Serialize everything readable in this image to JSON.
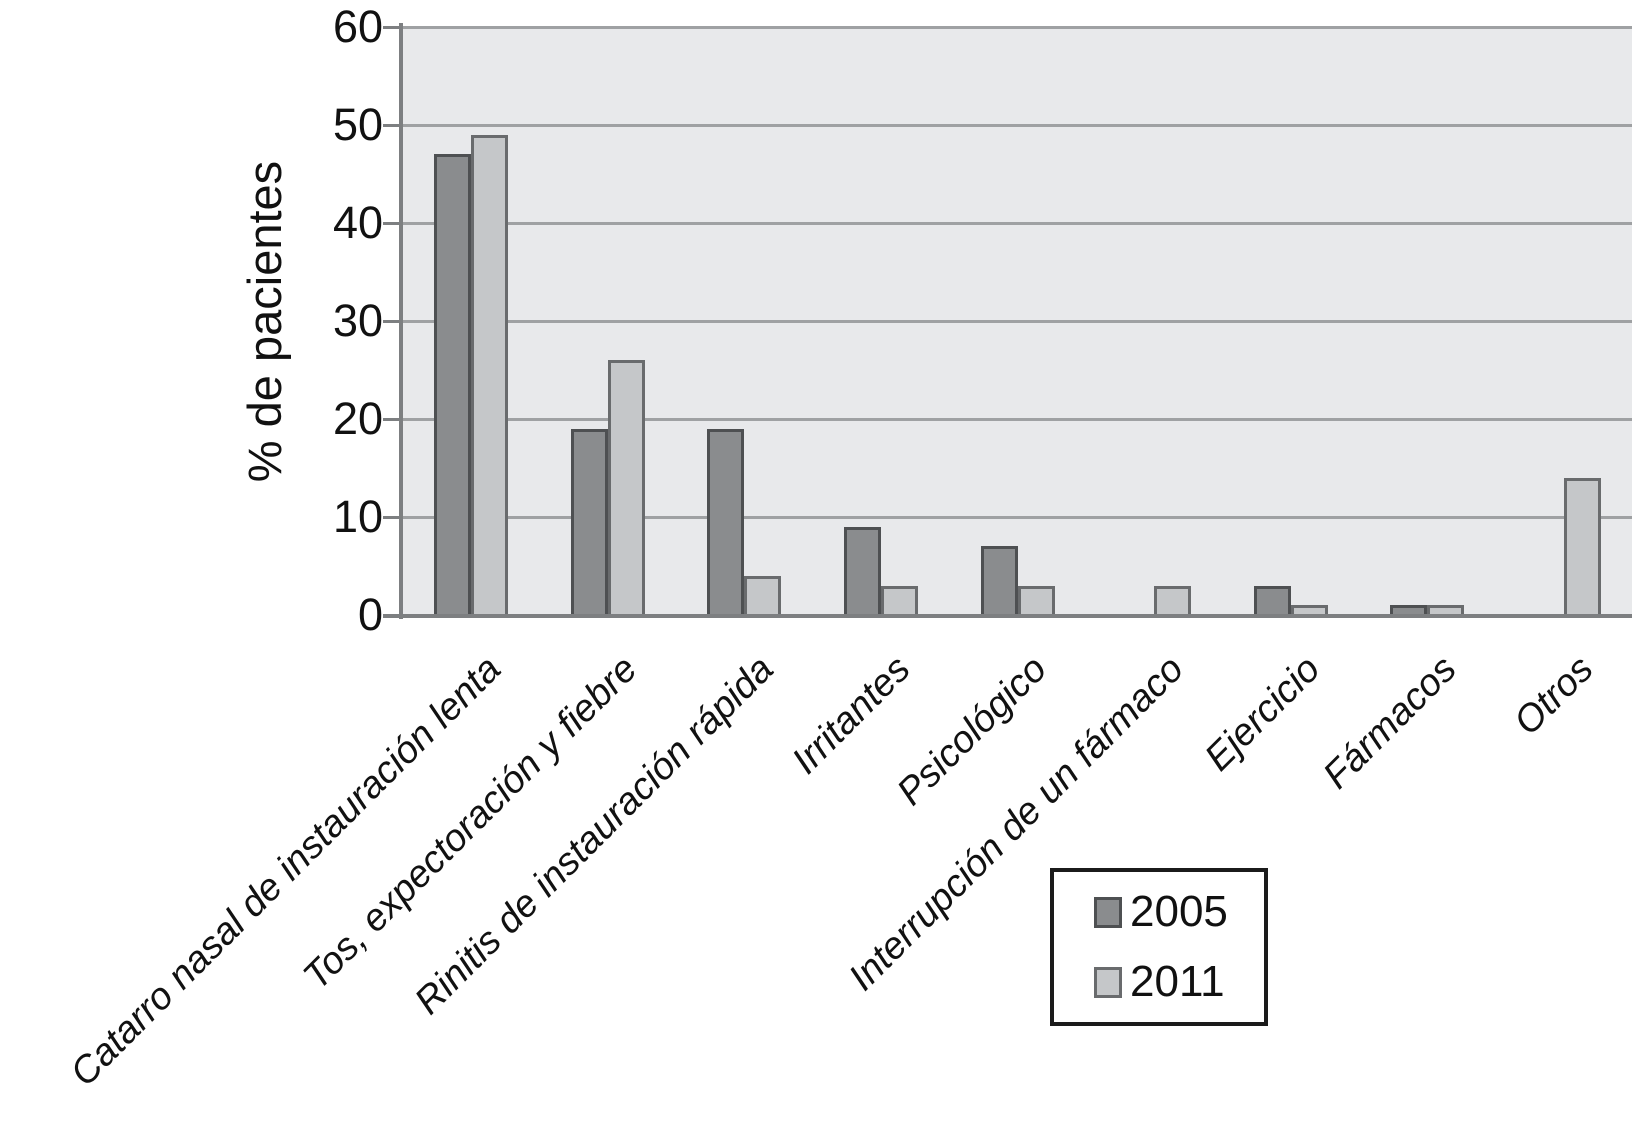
{
  "chart_data": {
    "type": "bar",
    "title": "",
    "xlabel": "",
    "ylabel": "% de pacientes",
    "categories": [
      "Catarro nasal de instauración lenta",
      "Tos, expectoración y fiebre",
      "Rinitis de instauración rápida",
      "Irritantes",
      "Psicológico",
      "Interrupción de un fármaco",
      "Ejercicio",
      "Fármacos",
      "Otros"
    ],
    "series": [
      {
        "name": "2005",
        "values": [
          47,
          19,
          19,
          9,
          7,
          0,
          3,
          1,
          0
        ],
        "color": "#8a8c8e",
        "border_color": "#4e5052"
      },
      {
        "name": "2011",
        "values": [
          49,
          26,
          4,
          3,
          3,
          3,
          1,
          1,
          14
        ],
        "color": "#c5c7c9",
        "border_color": "#696b6d"
      }
    ],
    "ylim": [
      0,
      60
    ],
    "yticks": [
      0,
      10,
      20,
      30,
      40,
      50,
      60
    ],
    "grid": "horizontal-only",
    "legend_position": "bottom-right",
    "x_label_rotation_deg": -45,
    "x_label_style": "italic"
  },
  "style": {
    "page_background": "#ffffff",
    "plot_background": "#e8e9eb",
    "gridline_color": "#9fa1a3",
    "axis_color": "#7d7f81",
    "text_color": "#111111",
    "legend_border_color": "#1b1b1b"
  }
}
